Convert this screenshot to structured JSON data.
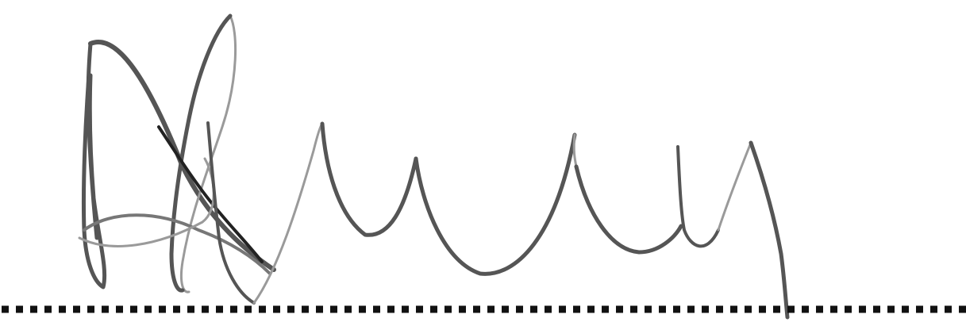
{
  "image": {
    "description_kind": "handwritten-signature",
    "background_color": "#ffffff",
    "ink_color": "#555555",
    "baseline_color": "#111111",
    "baseline_style": "dotted"
  }
}
